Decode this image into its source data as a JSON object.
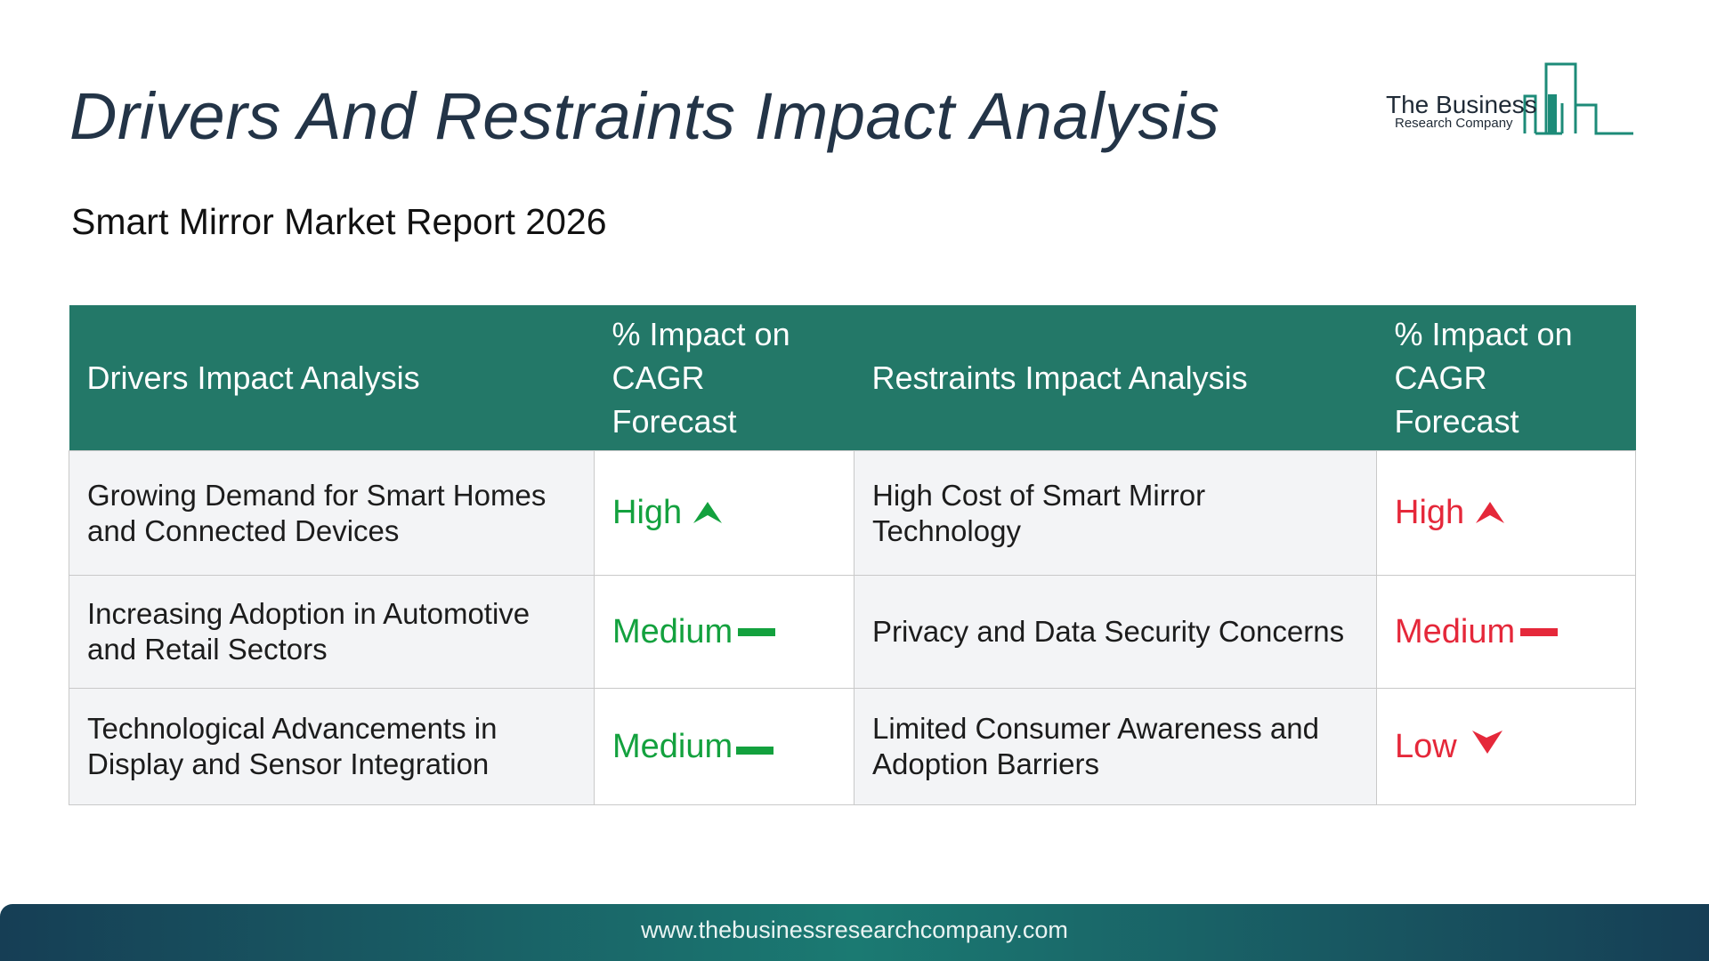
{
  "header": {
    "title": "Drivers And Restraints Impact Analysis",
    "subtitle": "Smart Mirror Market Report 2026"
  },
  "logo": {
    "line1": "The Business",
    "line2": "Research Company",
    "icon": "building-bars-icon",
    "color": "#1d8b78"
  },
  "table": {
    "headers": {
      "drivers": "Drivers Impact Analysis",
      "drivers_impact": "% Impact on CAGR Forecast",
      "restraints": "Restraints Impact Analysis",
      "restraints_impact": "% Impact on CAGR Forecast"
    },
    "rows": [
      {
        "driver": "Growing Demand for Smart Homes and Connected Devices",
        "driver_level": "High",
        "driver_icon": "arrow-up-icon",
        "restraint": "High Cost of Smart Mirror Technology",
        "restraint_level": "High",
        "restraint_icon": "arrow-up-icon"
      },
      {
        "driver": "Increasing Adoption in Automotive and Retail Sectors",
        "driver_level": "Medium",
        "driver_icon": "dash-icon",
        "restraint": "Privacy and Data Security Concerns",
        "restraint_level": "Medium",
        "restraint_icon": "dash-icon"
      },
      {
        "driver": "Technological Advancements in Display and Sensor Integration",
        "driver_level": "Medium",
        "driver_icon": "dash-icon",
        "restraint": "Limited Consumer Awareness and Adoption Barriers",
        "restraint_level": "Low",
        "restraint_icon": "arrow-down-icon"
      }
    ]
  },
  "colors": {
    "header_bg": "#237868",
    "driver_impact": "#13a13e",
    "restraint_impact": "#e5283a"
  },
  "footer": {
    "url": "www.thebusinessresearchcompany.com"
  }
}
